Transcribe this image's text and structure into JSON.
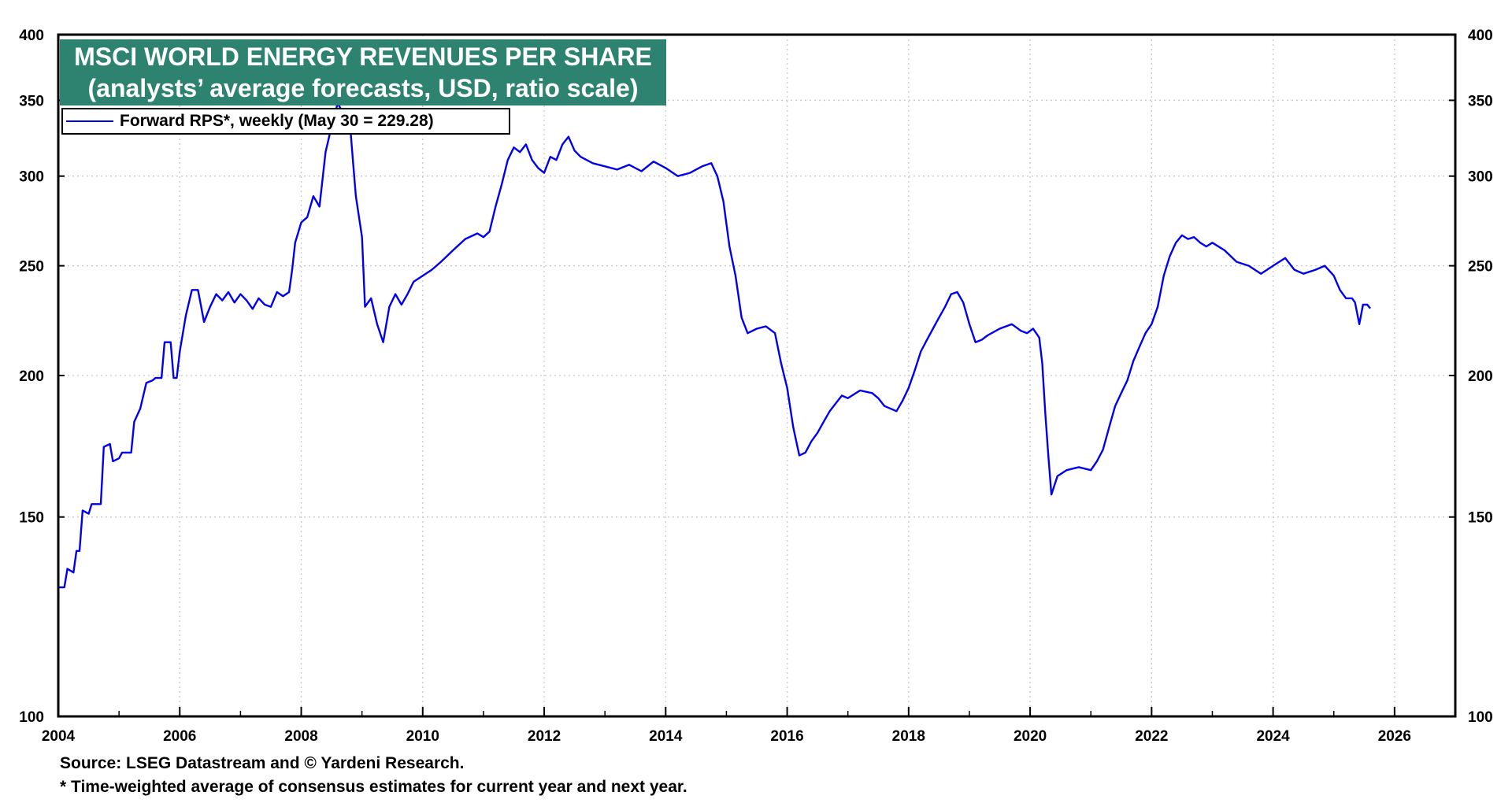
{
  "chart_data": {
    "type": "line",
    "title": "MSCI WORLD ENERGY REVENUES PER SHARE",
    "subtitle": "(analysts’ average forecasts, USD, ratio scale)",
    "scale": "log",
    "xlim": [
      2004,
      2027
    ],
    "ylim": [
      100,
      400
    ],
    "x_ticks": [
      "2004",
      "2006",
      "2008",
      "2010",
      "2012",
      "2014",
      "2016",
      "2018",
      "2020",
      "2022",
      "2024",
      "2026"
    ],
    "y_ticks": [
      "100",
      "150",
      "200",
      "250",
      "300",
      "350",
      "400"
    ],
    "grid": true,
    "legend_position": "top-left",
    "series": [
      {
        "name": "Forward RPS*, weekly (May 30 = 229.28)",
        "color": "#0000ee",
        "points": [
          [
            2004.0,
            130
          ],
          [
            2004.1,
            130
          ],
          [
            2004.15,
            135
          ],
          [
            2004.25,
            134
          ],
          [
            2004.3,
            140
          ],
          [
            2004.35,
            140
          ],
          [
            2004.4,
            152
          ],
          [
            2004.5,
            151
          ],
          [
            2004.55,
            154
          ],
          [
            2004.7,
            154
          ],
          [
            2004.75,
            173
          ],
          [
            2004.85,
            174
          ],
          [
            2004.9,
            168
          ],
          [
            2005.0,
            169
          ],
          [
            2005.05,
            171
          ],
          [
            2005.2,
            171
          ],
          [
            2005.25,
            182
          ],
          [
            2005.35,
            187
          ],
          [
            2005.45,
            197
          ],
          [
            2005.55,
            198
          ],
          [
            2005.6,
            199
          ],
          [
            2005.7,
            199
          ],
          [
            2005.75,
            214
          ],
          [
            2005.85,
            214
          ],
          [
            2005.9,
            199
          ],
          [
            2005.95,
            199
          ],
          [
            2006.0,
            210
          ],
          [
            2006.1,
            226
          ],
          [
            2006.2,
            238
          ],
          [
            2006.3,
            238
          ],
          [
            2006.4,
            223
          ],
          [
            2006.5,
            230
          ],
          [
            2006.6,
            236
          ],
          [
            2006.7,
            233
          ],
          [
            2006.8,
            237
          ],
          [
            2006.9,
            232
          ],
          [
            2007.0,
            236
          ],
          [
            2007.1,
            233
          ],
          [
            2007.2,
            229
          ],
          [
            2007.3,
            234
          ],
          [
            2007.4,
            231
          ],
          [
            2007.5,
            230
          ],
          [
            2007.6,
            237
          ],
          [
            2007.7,
            235
          ],
          [
            2007.8,
            237
          ],
          [
            2007.85,
            248
          ],
          [
            2007.9,
            262
          ],
          [
            2008.0,
            273
          ],
          [
            2008.1,
            276
          ],
          [
            2008.2,
            288
          ],
          [
            2008.3,
            282
          ],
          [
            2008.4,
            315
          ],
          [
            2008.5,
            332
          ],
          [
            2008.6,
            348
          ],
          [
            2008.7,
            340
          ],
          [
            2008.8,
            335
          ],
          [
            2008.85,
            310
          ],
          [
            2008.9,
            288
          ],
          [
            2009.0,
            265
          ],
          [
            2009.05,
            230
          ],
          [
            2009.15,
            234
          ],
          [
            2009.25,
            222
          ],
          [
            2009.35,
            214
          ],
          [
            2009.45,
            230
          ],
          [
            2009.55,
            236
          ],
          [
            2009.65,
            231
          ],
          [
            2009.75,
            236
          ],
          [
            2009.85,
            242
          ],
          [
            2010.0,
            245
          ],
          [
            2010.15,
            248
          ],
          [
            2010.3,
            252
          ],
          [
            2010.5,
            258
          ],
          [
            2010.7,
            264
          ],
          [
            2010.9,
            267
          ],
          [
            2011.0,
            265
          ],
          [
            2011.1,
            268
          ],
          [
            2011.2,
            282
          ],
          [
            2011.3,
            295
          ],
          [
            2011.4,
            310
          ],
          [
            2011.5,
            318
          ],
          [
            2011.6,
            315
          ],
          [
            2011.7,
            320
          ],
          [
            2011.8,
            310
          ],
          [
            2011.9,
            305
          ],
          [
            2012.0,
            302
          ],
          [
            2012.1,
            312
          ],
          [
            2012.2,
            310
          ],
          [
            2012.3,
            320
          ],
          [
            2012.4,
            325
          ],
          [
            2012.5,
            316
          ],
          [
            2012.6,
            312
          ],
          [
            2012.8,
            308
          ],
          [
            2013.0,
            306
          ],
          [
            2013.2,
            304
          ],
          [
            2013.4,
            307
          ],
          [
            2013.6,
            303
          ],
          [
            2013.8,
            309
          ],
          [
            2014.0,
            305
          ],
          [
            2014.2,
            300
          ],
          [
            2014.4,
            302
          ],
          [
            2014.6,
            306
          ],
          [
            2014.75,
            308
          ],
          [
            2014.85,
            300
          ],
          [
            2014.95,
            285
          ],
          [
            2015.05,
            260
          ],
          [
            2015.15,
            245
          ],
          [
            2015.25,
            225
          ],
          [
            2015.35,
            218
          ],
          [
            2015.5,
            220
          ],
          [
            2015.65,
            221
          ],
          [
            2015.8,
            218
          ],
          [
            2015.9,
            205
          ],
          [
            2016.0,
            195
          ],
          [
            2016.1,
            180
          ],
          [
            2016.2,
            170
          ],
          [
            2016.3,
            171
          ],
          [
            2016.4,
            175
          ],
          [
            2016.5,
            178
          ],
          [
            2016.6,
            182
          ],
          [
            2016.7,
            186
          ],
          [
            2016.8,
            189
          ],
          [
            2016.9,
            192
          ],
          [
            2017.0,
            191
          ],
          [
            2017.2,
            194
          ],
          [
            2017.4,
            193
          ],
          [
            2017.5,
            191
          ],
          [
            2017.6,
            188
          ],
          [
            2017.8,
            186
          ],
          [
            2017.9,
            190
          ],
          [
            2018.0,
            195
          ],
          [
            2018.1,
            202
          ],
          [
            2018.2,
            210
          ],
          [
            2018.3,
            215
          ],
          [
            2018.4,
            220
          ],
          [
            2018.5,
            225
          ],
          [
            2018.6,
            230
          ],
          [
            2018.7,
            236
          ],
          [
            2018.8,
            237
          ],
          [
            2018.9,
            232
          ],
          [
            2019.0,
            222
          ],
          [
            2019.1,
            214
          ],
          [
            2019.2,
            215
          ],
          [
            2019.3,
            217
          ],
          [
            2019.5,
            220
          ],
          [
            2019.7,
            222
          ],
          [
            2019.85,
            219
          ],
          [
            2019.95,
            218
          ],
          [
            2020.05,
            220
          ],
          [
            2020.15,
            216
          ],
          [
            2020.2,
            205
          ],
          [
            2020.25,
            185
          ],
          [
            2020.3,
            170
          ],
          [
            2020.35,
            157
          ],
          [
            2020.45,
            163
          ],
          [
            2020.6,
            165
          ],
          [
            2020.8,
            166
          ],
          [
            2021.0,
            165
          ],
          [
            2021.1,
            168
          ],
          [
            2021.2,
            172
          ],
          [
            2021.3,
            180
          ],
          [
            2021.4,
            188
          ],
          [
            2021.5,
            193
          ],
          [
            2021.6,
            198
          ],
          [
            2021.7,
            206
          ],
          [
            2021.8,
            212
          ],
          [
            2021.9,
            218
          ],
          [
            2022.0,
            222
          ],
          [
            2022.1,
            230
          ],
          [
            2022.2,
            245
          ],
          [
            2022.3,
            255
          ],
          [
            2022.4,
            262
          ],
          [
            2022.5,
            266
          ],
          [
            2022.6,
            264
          ],
          [
            2022.7,
            265
          ],
          [
            2022.8,
            262
          ],
          [
            2022.9,
            260
          ],
          [
            2023.0,
            262
          ],
          [
            2023.2,
            258
          ],
          [
            2023.4,
            252
          ],
          [
            2023.6,
            250
          ],
          [
            2023.8,
            246
          ],
          [
            2024.0,
            250
          ],
          [
            2024.2,
            254
          ],
          [
            2024.35,
            248
          ],
          [
            2024.5,
            246
          ],
          [
            2024.7,
            248
          ],
          [
            2024.85,
            250
          ],
          [
            2025.0,
            245
          ],
          [
            2025.1,
            238
          ],
          [
            2025.2,
            234
          ],
          [
            2025.3,
            234
          ],
          [
            2025.35,
            232
          ],
          [
            2025.42,
            222
          ],
          [
            2025.48,
            231
          ],
          [
            2025.55,
            231
          ],
          [
            2025.6,
            229.28
          ]
        ]
      }
    ]
  },
  "footer": {
    "source": "Source: LSEG Datastream and © Yardeni Research.",
    "note": "* Time-weighted average of consensus estimates for current year and next year."
  }
}
